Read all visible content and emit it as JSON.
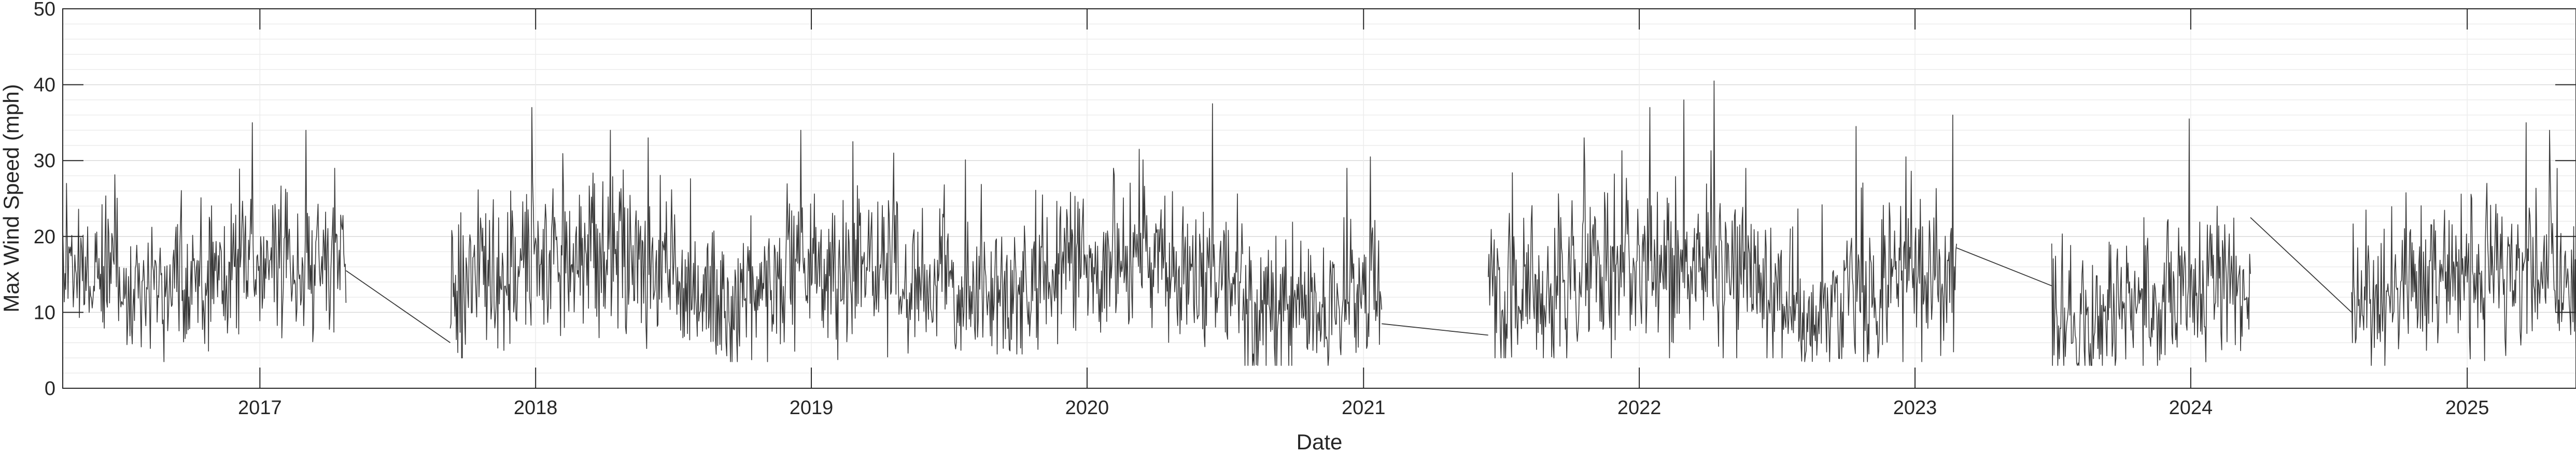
{
  "chart_data": {
    "type": "line",
    "title": "",
    "xlabel": "Date",
    "ylabel": "Max Wind Speed (mph)",
    "ylim": [
      0,
      50
    ],
    "yticks": [
      0,
      10,
      20,
      30,
      40,
      50
    ],
    "xlim": [
      "2016-04-15",
      "2025-05-25"
    ],
    "xtick_labels": [
      "2017",
      "2018",
      "2019",
      "2020",
      "2021",
      "2022",
      "2023",
      "2024",
      "2025"
    ],
    "xtick_dates": [
      "2017-01-01",
      "2018-01-01",
      "2019-01-01",
      "2020-01-01",
      "2021-01-01",
      "2022-01-01",
      "2023-01-01",
      "2024-01-01",
      "2025-01-01"
    ],
    "grid": true,
    "minor_grid_y": true,
    "line_color": "#3a3a3a",
    "series": [
      {
        "segments": [
          {
            "start": "2016-04-15",
            "end": "2017-04-25",
            "mean": 14.5,
            "amp": 6.0,
            "peaks": [
              [
                "2016-12-22",
                35
              ],
              [
                "2017-03-03",
                34
              ],
              [
                "2016-04-20",
                27
              ],
              [
                "2017-04-10",
                29
              ]
            ],
            "min": 3.5
          },
          {
            "start": "2017-09-10",
            "end": "2018-07-20",
            "mean": 15.5,
            "amp": 7.0,
            "peaks": [
              [
                "2017-12-27",
                37
              ],
              [
                "2018-04-10",
                34
              ],
              [
                "2018-05-30",
                33
              ]
            ],
            "min": 4.0
          },
          {
            "start": "2018-07-20",
            "end": "2019-07-20",
            "mean": 13.5,
            "amp": 6.5,
            "peaks": [
              [
                "2018-12-18",
                34
              ],
              [
                "2019-02-25",
                32.5
              ],
              [
                "2019-04-20",
                31
              ]
            ],
            "min": 3.5
          },
          {
            "start": "2019-07-20",
            "end": "2020-07-25",
            "mean": 14.5,
            "amp": 6.5,
            "peaks": [
              [
                "2020-03-10",
                31.5
              ],
              [
                "2020-06-15",
                37.5
              ],
              [
                "2020-02-05",
                29
              ]
            ],
            "min": 4.5
          },
          {
            "start": "2020-07-25",
            "end": "2021-01-25",
            "mean": 11.5,
            "amp": 6.5,
            "peaks": [
              [
                "2021-01-10",
                30.5
              ],
              [
                "2020-12-10",
                29
              ]
            ],
            "min": 3.0
          },
          {
            "start": "2021-06-15",
            "end": "2022-07-20",
            "mean": 14.5,
            "amp": 7.0,
            "peaks": [
              [
                "2022-04-10",
                40.5
              ],
              [
                "2022-01-15",
                37
              ],
              [
                "2022-03-01",
                38
              ],
              [
                "2021-10-20",
                33
              ]
            ],
            "min": 4.0
          },
          {
            "start": "2022-07-20",
            "end": "2023-02-25",
            "mean": 13.0,
            "amp": 6.5,
            "peaks": [
              [
                "2023-02-20",
                36
              ],
              [
                "2022-10-15",
                34.5
              ],
              [
                "2022-12-20",
                30.5
              ]
            ],
            "min": 3.5
          },
          {
            "start": "2023-07-01",
            "end": "2024-03-20",
            "mean": 11.0,
            "amp": 6.0,
            "peaks": [
              [
                "2023-12-30",
                35.5
              ],
              [
                "2024-02-05",
                24
              ]
            ],
            "min": 3.0
          },
          {
            "start": "2024-08-01",
            "end": "2025-05-25",
            "mean": 13.5,
            "amp": 6.5,
            "peaks": [
              [
                "2025-03-20",
                35
              ],
              [
                "2025-04-20",
                34
              ],
              [
                "2024-08-20",
                23.5
              ]
            ],
            "min": 3.0
          }
        ],
        "gaps": [
          {
            "from": [
              "2017-04-25",
              15.5
            ],
            "to": [
              "2017-09-10",
              6.0
            ]
          },
          {
            "from": [
              "2021-01-25",
              8.5
            ],
            "to": [
              "2021-06-15",
              7.0
            ]
          },
          {
            "from": [
              "2023-02-25",
              18.5
            ],
            "to": [
              "2023-07-01",
              13.5
            ]
          },
          {
            "from": [
              "2024-03-20",
              22.5
            ],
            "to": [
              "2024-08-01",
              10.0
            ]
          }
        ]
      }
    ]
  }
}
